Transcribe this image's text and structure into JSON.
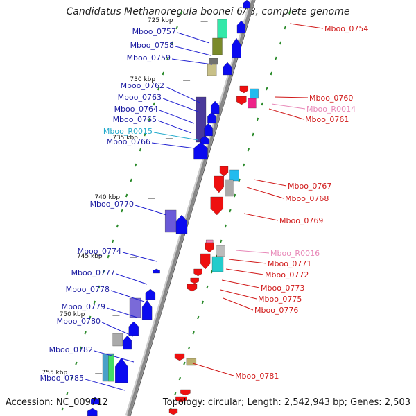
{
  "title": "Candidatus Methanoregula boonei 6A8, complete genome",
  "footer": {
    "accession": "Accession: NC_009712",
    "summary": "Topology: circular; Length: 2,542,943 bp; Genes: 2,503"
  },
  "scale_labels": [
    "725 kbp",
    "730 kbp",
    "735 kbp",
    "740 kbp",
    "745 kbp",
    "750 kbp",
    "755 kbp"
  ],
  "left_genes": [
    "Mboo_0757",
    "Mboo_0758",
    "Mboo_0759",
    "Mboo_0762",
    "Mboo_0763",
    "Mboo_0764",
    "Mboo_0765",
    "Mboo_R0015",
    "Mboo_0766",
    "Mboo_0770",
    "Mboo_0774",
    "Mboo_0777",
    "Mboo_0778",
    "Mboo_0779",
    "Mboo_0780",
    "Mboo_0782",
    "Mboo_0785"
  ],
  "right_genes": [
    "Mboo_0754",
    "Mboo_0760",
    "Mboo_R0014",
    "Mboo_0761",
    "Mboo_0767",
    "Mboo_0768",
    "Mboo_0769",
    "Mboo_R0016",
    "Mboo_0771",
    "Mboo_0772",
    "Mboo_0773",
    "Mboo_0775",
    "Mboo_0776",
    "Mboo_0781"
  ],
  "colors": {
    "forward_label": "#1a1aa0",
    "reverse_label": "#d01818",
    "rna_label_blue": "#22aacc",
    "rna_label_pink": "#e888b8",
    "forward_arrow": "#0a0af0",
    "reverse_arrow": "#ee1010",
    "backbone": "#888888",
    "tick": "#2a8a2a"
  }
}
